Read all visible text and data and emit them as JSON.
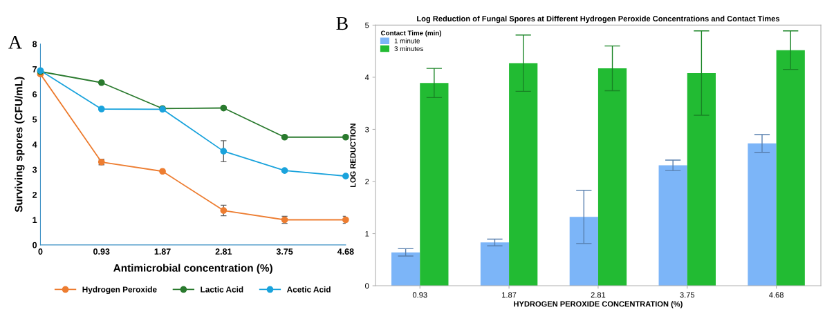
{
  "chart_data": [
    {
      "type": "line",
      "xlabel": "Antimicrobial concentration (%)",
      "ylabel": "Surviving spores (CFU/mL)",
      "annotations": [
        "A"
      ],
      "categories": [
        "0",
        "0.93",
        "1.87",
        "2.81",
        "3.75",
        "4.68"
      ],
      "series": [
        {
          "name": "Hydrogen Peroxide",
          "color": "#ed7d31",
          "values": [
            6.8,
            3.3,
            2.93,
            1.37,
            1.0,
            1.0
          ],
          "errors": [
            null,
            0.11,
            null,
            0.21,
            0.14,
            0.14
          ]
        },
        {
          "name": "Lactic Acid",
          "color": "#2a7a2e",
          "values": [
            6.9,
            6.46,
            5.43,
            5.45,
            4.29,
            4.29
          ]
        },
        {
          "name": "Acetic Acid",
          "color": "#1aa3dc",
          "values": [
            6.94,
            5.41,
            5.4,
            3.73,
            2.96,
            2.74
          ],
          "errors": [
            null,
            null,
            null,
            0.42,
            null,
            null
          ]
        }
      ],
      "ylim": [
        0,
        8
      ],
      "yticks": [
        0,
        1,
        2,
        3,
        4,
        5,
        6,
        7,
        8
      ],
      "grid": false,
      "legend": "bottom",
      "marker": "circle",
      "line_style": "solid"
    },
    {
      "type": "bar",
      "title": "Log Reduction of Fungal Spores at Different Hydrogen Peroxide Concentrations and Contact Times",
      "xlabel": "HYDROGEN PEROXIDE CONCENTRATION (%)",
      "ylabel": "LOG REDUCTION",
      "legend_title": "Contact Time (min)",
      "annotations": [
        "B"
      ],
      "categories": [
        "0.93",
        "1.87",
        "2.81",
        "3.75",
        "4.68"
      ],
      "series": [
        {
          "name": "1 minute",
          "color": "#7cb5f8",
          "values": [
            0.64,
            0.83,
            1.32,
            2.31,
            2.73
          ],
          "errors": [
            0.07,
            0.065,
            0.51,
            0.1,
            0.17
          ]
        },
        {
          "name": "3 minutes",
          "color": "#22bb33",
          "values": [
            3.89,
            4.27,
            4.17,
            4.08,
            4.52
          ],
          "errors": [
            0.28,
            0.54,
            0.43,
            0.81,
            0.37
          ]
        }
      ],
      "ylim": [
        0,
        5
      ],
      "yticks": [
        0,
        1,
        2,
        3,
        4,
        5
      ],
      "grid": false,
      "legend": "top left"
    }
  ]
}
